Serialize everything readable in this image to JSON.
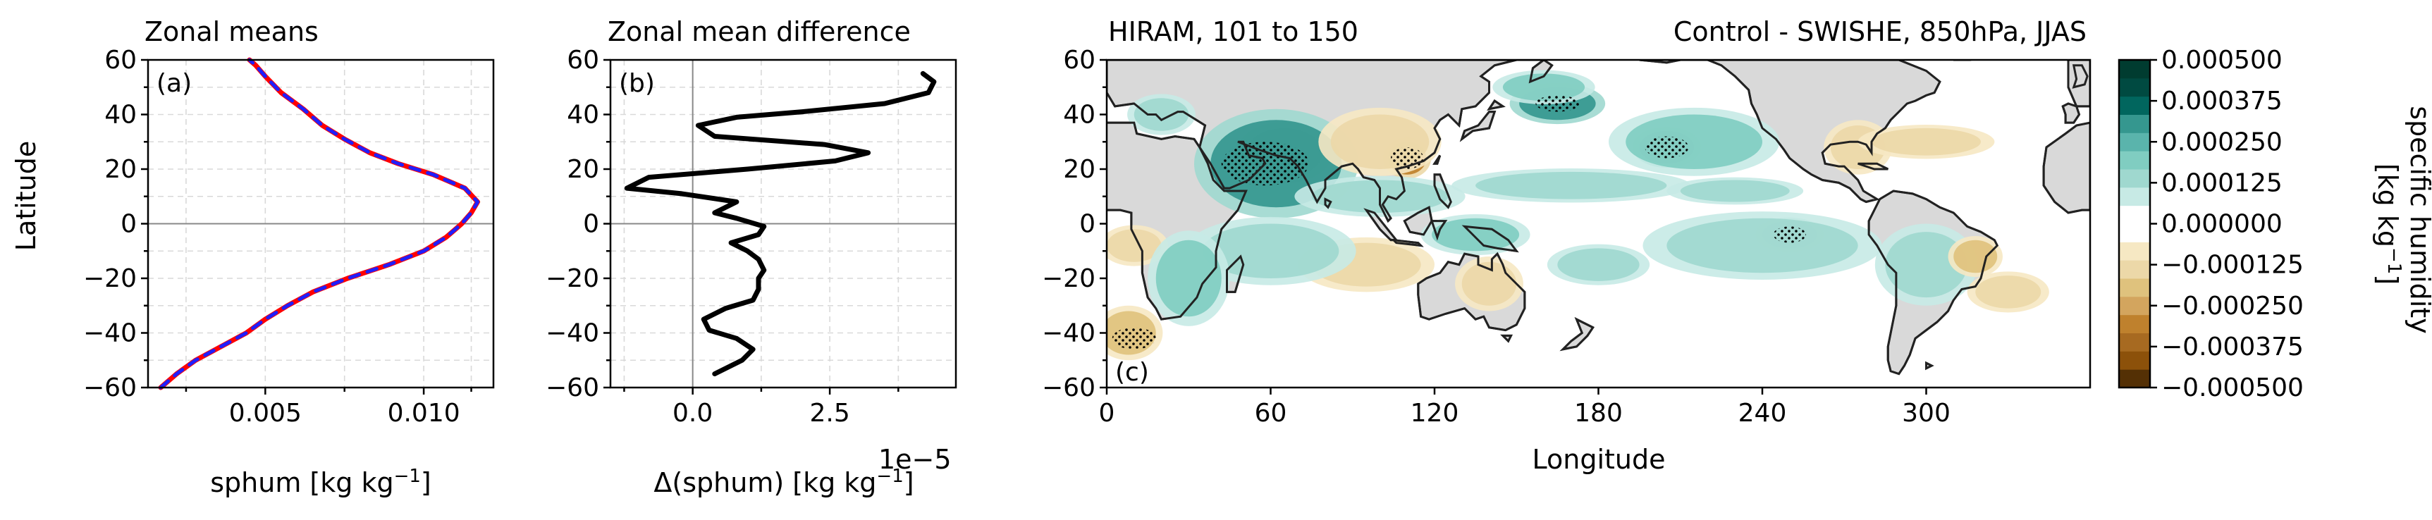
{
  "chart_data": [
    {
      "id": "a",
      "type": "line",
      "title": "Zonal means",
      "panel_label": "(a)",
      "xlabel": "sphum [kg kg",
      "xlabel_sup": "−1",
      "xlabel_tail": "]",
      "ylabel": "Latitude",
      "xlim": [
        0.0013,
        0.0122
      ],
      "ylim": [
        -60,
        60
      ],
      "xticks": [
        0.005,
        0.01
      ],
      "xtick_labels": [
        "0.005",
        "0.010"
      ],
      "yticks": [
        -60,
        -40,
        -20,
        0,
        20,
        40,
        60
      ],
      "ytick_labels": [
        "−60",
        "−40",
        "−20",
        "0",
        "20",
        "40",
        "60"
      ],
      "grid": true,
      "series": [
        {
          "color": "#ff0000",
          "dash": "solid",
          "points": [
            [
              0.0017,
              -60
            ],
            [
              0.0022,
              -55
            ],
            [
              0.0028,
              -50
            ],
            [
              0.0036,
              -45
            ],
            [
              0.0044,
              -40
            ],
            [
              0.005,
              -35
            ],
            [
              0.0057,
              -30
            ],
            [
              0.0065,
              -25
            ],
            [
              0.0076,
              -20
            ],
            [
              0.0089,
              -15
            ],
            [
              0.01,
              -10
            ],
            [
              0.0107,
              -5
            ],
            [
              0.011,
              -2
            ],
            [
              0.0112,
              0
            ],
            [
              0.0115,
              4
            ],
            [
              0.0117,
              8
            ],
            [
              0.0113,
              13
            ],
            [
              0.0103,
              18
            ],
            [
              0.0092,
              22
            ],
            [
              0.0083,
              26
            ],
            [
              0.0075,
              31
            ],
            [
              0.0068,
              36
            ],
            [
              0.0062,
              42
            ],
            [
              0.0055,
              48
            ],
            [
              0.005,
              54
            ],
            [
              0.0047,
              58
            ],
            [
              0.0045,
              60
            ]
          ]
        },
        {
          "color": "#1f1fff",
          "dash": "dashed",
          "points": [
            [
              0.0017,
              -60
            ],
            [
              0.0022,
              -55
            ],
            [
              0.0028,
              -50
            ],
            [
              0.0036,
              -45
            ],
            [
              0.0044,
              -40
            ],
            [
              0.005,
              -35
            ],
            [
              0.0057,
              -30
            ],
            [
              0.0065,
              -25
            ],
            [
              0.0076,
              -20
            ],
            [
              0.0089,
              -15
            ],
            [
              0.01,
              -10
            ],
            [
              0.0107,
              -5
            ],
            [
              0.011,
              -2
            ],
            [
              0.0112,
              0
            ],
            [
              0.0115,
              4
            ],
            [
              0.0117,
              8
            ],
            [
              0.0113,
              13
            ],
            [
              0.0103,
              18
            ],
            [
              0.0092,
              22
            ],
            [
              0.0083,
              26
            ],
            [
              0.0075,
              31
            ],
            [
              0.0068,
              36
            ],
            [
              0.0062,
              42
            ],
            [
              0.0055,
              48
            ],
            [
              0.005,
              54
            ],
            [
              0.0047,
              58
            ],
            [
              0.0045,
              60
            ]
          ]
        }
      ]
    },
    {
      "id": "b",
      "type": "line",
      "title": "Zonal mean difference",
      "panel_label": "(b)",
      "xlabel": "Δ(sphum) [kg kg",
      "xlabel_sup": "−1",
      "xlabel_tail": "]",
      "offset_text": "1e−5",
      "xlim": [
        -1.5,
        4.8
      ],
      "ylim": [
        -60,
        60
      ],
      "xticks": [
        0.0,
        2.5
      ],
      "xtick_labels": [
        "0.0",
        "2.5"
      ],
      "yticks": [
        -60,
        -40,
        -20,
        0,
        20,
        40,
        60
      ],
      "ytick_labels": [
        "−60",
        "−40",
        "−20",
        "0",
        "20",
        "40",
        "60"
      ],
      "grid": true,
      "series": [
        {
          "color": "#000000",
          "dash": "solid",
          "points": [
            [
              0.4,
              -55
            ],
            [
              0.9,
              -50
            ],
            [
              1.1,
              -46
            ],
            [
              0.8,
              -42
            ],
            [
              0.3,
              -39
            ],
            [
              0.2,
              -35
            ],
            [
              0.6,
              -31
            ],
            [
              1.1,
              -28
            ],
            [
              1.2,
              -24
            ],
            [
              1.2,
              -20
            ],
            [
              1.3,
              -17
            ],
            [
              1.2,
              -13
            ],
            [
              1.0,
              -10
            ],
            [
              0.7,
              -7
            ],
            [
              1.2,
              -4
            ],
            [
              1.3,
              -1
            ],
            [
              0.8,
              2
            ],
            [
              0.4,
              4
            ],
            [
              0.6,
              6
            ],
            [
              0.8,
              8
            ],
            [
              -0.2,
              11
            ],
            [
              -1.2,
              13
            ],
            [
              -0.8,
              17
            ],
            [
              1.0,
              20
            ],
            [
              2.6,
              23
            ],
            [
              3.2,
              26
            ],
            [
              2.4,
              29
            ],
            [
              0.4,
              32
            ],
            [
              0.1,
              36
            ],
            [
              0.8,
              39
            ],
            [
              2.0,
              41
            ],
            [
              3.5,
              44
            ],
            [
              4.3,
              48
            ],
            [
              4.4,
              52
            ],
            [
              4.2,
              55
            ]
          ]
        }
      ]
    },
    {
      "id": "c",
      "type": "heatmap",
      "title_left": "HIRAM, 101 to 150",
      "title_right": "Control - SWISHE, 850hPa, JJAS",
      "panel_label": "(c)",
      "xlabel": "Longitude",
      "xlim": [
        0,
        360
      ],
      "ylim": [
        -60,
        60
      ],
      "xticks": [
        0,
        60,
        120,
        180,
        240,
        300
      ],
      "xtick_labels": [
        "0",
        "60",
        "120",
        "180",
        "240",
        "300"
      ],
      "yticks": [
        -60,
        -40,
        -20,
        0,
        20,
        40,
        60
      ],
      "ytick_labels": [
        "−60",
        "−40",
        "−20",
        "0",
        "20",
        "40",
        "60"
      ],
      "grid": false,
      "anomalies": [
        {
          "lon": 65,
          "lat": 26,
          "dlon": 14,
          "dlat": 9,
          "value": 0.00048
        },
        {
          "lon": 62,
          "lat": 22,
          "dlon": 24,
          "dlat": 16,
          "value": 0.0003
        },
        {
          "lon": 110,
          "lat": 24,
          "dlon": 7,
          "dlat": 6,
          "value": -0.0003
        },
        {
          "lon": 100,
          "lat": 30,
          "dlon": 18,
          "dlat": 10,
          "value": -0.00012
        },
        {
          "lon": 100,
          "lat": 10,
          "dlon": 25,
          "dlat": 6,
          "value": 0.00013
        },
        {
          "lon": 165,
          "lat": 44,
          "dlon": 14,
          "dlat": 6,
          "value": 0.0003
        },
        {
          "lon": 205,
          "lat": 28,
          "dlon": 10,
          "dlat": 6,
          "value": 0.0004
        },
        {
          "lon": 215,
          "lat": 30,
          "dlon": 25,
          "dlat": 10,
          "value": 0.00018
        },
        {
          "lon": 170,
          "lat": 14,
          "dlon": 35,
          "dlat": 5,
          "value": 0.00013
        },
        {
          "lon": 230,
          "lat": 12,
          "dlon": 20,
          "dlat": 4,
          "value": 0.00015
        },
        {
          "lon": 250,
          "lat": -4,
          "dlon": 10,
          "dlat": 5,
          "value": 0.0003
        },
        {
          "lon": 240,
          "lat": -8,
          "dlon": 35,
          "dlat": 10,
          "value": 0.00015
        },
        {
          "lon": 140,
          "lat": -22,
          "dlon": 10,
          "dlat": 8,
          "value": -0.00015
        },
        {
          "lon": 135,
          "lat": -4,
          "dlon": 16,
          "dlat": 6,
          "value": 0.0002
        },
        {
          "lon": 95,
          "lat": -15,
          "dlon": 20,
          "dlat": 8,
          "value": -0.00014
        },
        {
          "lon": 60,
          "lat": -10,
          "dlon": 25,
          "dlat": 10,
          "value": 0.00013
        },
        {
          "lon": 10,
          "lat": -8,
          "dlon": 10,
          "dlat": 6,
          "value": -0.00014
        },
        {
          "lon": 30,
          "lat": -20,
          "dlon": 12,
          "dlat": 14,
          "value": 0.0002
        },
        {
          "lon": 8,
          "lat": -40,
          "dlon": 10,
          "dlat": 8,
          "value": -0.0002
        },
        {
          "lon": 300,
          "lat": -15,
          "dlon": 15,
          "dlat": 12,
          "value": 0.00012
        },
        {
          "lon": 318,
          "lat": -12,
          "dlon": 8,
          "dlat": 6,
          "value": -0.00018
        },
        {
          "lon": 275,
          "lat": 28,
          "dlon": 10,
          "dlat": 8,
          "value": -0.00015
        },
        {
          "lon": 160,
          "lat": 50,
          "dlon": 15,
          "dlat": 5,
          "value": 0.0002
        },
        {
          "lon": 20,
          "lat": 40,
          "dlon": 10,
          "dlat": 6,
          "value": 0.00014
        },
        {
          "lon": 180,
          "lat": -15,
          "dlon": 15,
          "dlat": 6,
          "value": 0.00012
        },
        {
          "lon": 300,
          "lat": 30,
          "dlon": 20,
          "dlat": 5,
          "value": -0.00012
        },
        {
          "lon": 330,
          "lat": -25,
          "dlon": 12,
          "dlat": 6,
          "value": -0.00012
        }
      ],
      "stipple_regions": [
        {
          "lon": 58,
          "lat": 22,
          "dlon": 16,
          "dlat": 8
        },
        {
          "lon": 110,
          "lat": 24,
          "dlon": 6,
          "dlat": 4
        },
        {
          "lon": 205,
          "lat": 28,
          "dlon": 8,
          "dlat": 4
        },
        {
          "lon": 250,
          "lat": -4,
          "dlon": 6,
          "dlat": 3
        },
        {
          "lon": 165,
          "lat": 44,
          "dlon": 8,
          "dlat": 3
        },
        {
          "lon": 10,
          "lat": -42,
          "dlon": 8,
          "dlat": 4
        }
      ],
      "colorbar": {
        "label_line1": "specific humidity",
        "label_line2": "[kg kg",
        "label_sup": "−1",
        "label_tail": "]",
        "levels": [
          -0.0005,
          -0.000375,
          -0.00025,
          -0.000125,
          0.0,
          0.000125,
          0.00025,
          0.000375,
          0.0005
        ],
        "tick_labels": [
          "0.000500",
          "0.000375",
          "0.000250",
          "0.000125",
          "0.000000",
          "−0.000125",
          "−0.000250",
          "−0.000375",
          "−0.000500"
        ],
        "colors": [
          "#543005",
          "#8c510a",
          "#a76a21",
          "#bf812d",
          "#d3a55e",
          "#dfc27d",
          "#ecd8a8",
          "#f6e8c3",
          "#ffffff",
          "#ffffff",
          "#c7eae5",
          "#9fd8cf",
          "#80cdc1",
          "#5ab4ac",
          "#35978f",
          "#01665e",
          "#004a41",
          "#003c30"
        ]
      }
    }
  ]
}
